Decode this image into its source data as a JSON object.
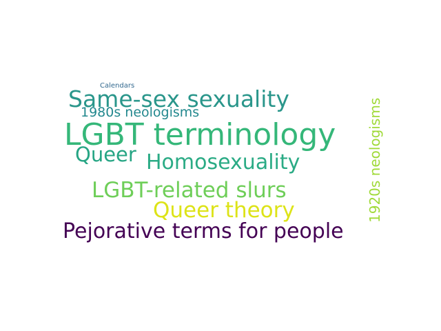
{
  "words": [
    {
      "text": "LGBT terminology",
      "color": "#35b779"
    },
    {
      "text": "Same-sex sexuality",
      "color": "#2a968b"
    },
    {
      "text": "Pejorative terms for people",
      "color": "#440154"
    },
    {
      "text": "Homosexuality",
      "color": "#2bab85"
    },
    {
      "text": "LGBT-related slurs",
      "color": "#6ece58"
    },
    {
      "text": "Queer theory",
      "color": "#dde318"
    },
    {
      "text": "Queer",
      "color": "#26a584"
    },
    {
      "text": "1980s neologisms",
      "color": "#23888e"
    },
    {
      "text": "1920s neologisms",
      "color": "#a0da39"
    },
    {
      "text": "Calendars",
      "color": "#31688e"
    }
  ]
}
